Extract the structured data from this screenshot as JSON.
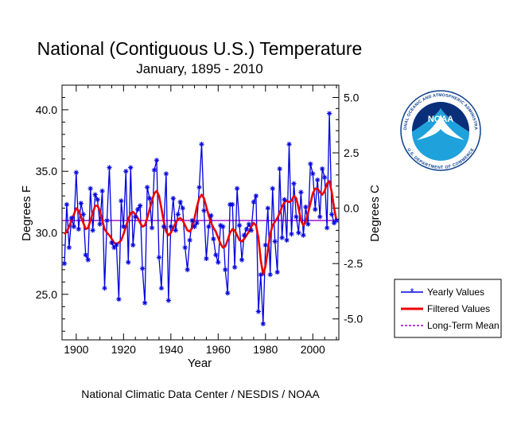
{
  "chart_data": {
    "type": "line",
    "title": "National (Contiguous U.S.) Temperature",
    "subtitle": "January, 1895 - 2010",
    "xlabel": "Year",
    "ylabel": "Degrees F",
    "y2label": "Degrees C",
    "xlim": [
      1894,
      2011
    ],
    "ylim": [
      21.3,
      42.0
    ],
    "x_ticks": [
      1900,
      1920,
      1940,
      1960,
      1980,
      2000
    ],
    "y_ticks": [
      25.0,
      30.0,
      35.0,
      40.0
    ],
    "y_tick_labels": [
      "25.0",
      "30.0",
      "35.0",
      "40.0"
    ],
    "y2_ticks": [
      -5.0,
      -2.5,
      0.0,
      2.5,
      5.0
    ],
    "y2_tick_labels": [
      "-5.0",
      "-2.5",
      "0.0",
      "2.5",
      "5.0"
    ],
    "grid": false,
    "legend_position": "right",
    "years": [
      1895,
      1896,
      1897,
      1898,
      1899,
      1900,
      1901,
      1902,
      1903,
      1904,
      1905,
      1906,
      1907,
      1908,
      1909,
      1910,
      1911,
      1912,
      1913,
      1914,
      1915,
      1916,
      1917,
      1918,
      1919,
      1920,
      1921,
      1922,
      1923,
      1924,
      1925,
      1926,
      1927,
      1928,
      1929,
      1930,
      1931,
      1932,
      1933,
      1934,
      1935,
      1936,
      1937,
      1938,
      1939,
      1940,
      1941,
      1942,
      1943,
      1944,
      1945,
      1946,
      1947,
      1948,
      1949,
      1950,
      1951,
      1952,
      1953,
      1954,
      1955,
      1956,
      1957,
      1958,
      1959,
      1960,
      1961,
      1962,
      1963,
      1964,
      1965,
      1966,
      1967,
      1968,
      1969,
      1970,
      1971,
      1972,
      1973,
      1974,
      1975,
      1976,
      1977,
      1978,
      1979,
      1980,
      1981,
      1982,
      1983,
      1984,
      1985,
      1986,
      1987,
      1988,
      1989,
      1990,
      1991,
      1992,
      1993,
      1994,
      1995,
      1996,
      1997,
      1998,
      1999,
      2000,
      2001,
      2002,
      2003,
      2004,
      2005,
      2006,
      2007,
      2008,
      2009,
      2010
    ],
    "series": [
      {
        "name": "Yearly Values",
        "color": "#0000dd",
        "values": [
          27.5,
          32.3,
          28.8,
          31.2,
          30.5,
          34.9,
          30.3,
          32.4,
          31.5,
          28.2,
          27.8,
          33.6,
          30.2,
          33.1,
          32.7,
          30.7,
          33.4,
          25.5,
          31.0,
          35.3,
          29.2,
          28.8,
          29.0,
          24.6,
          32.6,
          30.5,
          35.0,
          27.6,
          35.3,
          29.0,
          31.3,
          31.9,
          32.2,
          27.1,
          24.3,
          33.7,
          32.8,
          30.4,
          35.1,
          35.9,
          28.0,
          25.5,
          30.5,
          34.8,
          24.5,
          30.5,
          32.8,
          30.2,
          31.5,
          32.5,
          32.0,
          28.8,
          27.0,
          29.4,
          31.0,
          30.5,
          30.8,
          33.7,
          37.2,
          31.8,
          27.9,
          30.5,
          31.4,
          29.5,
          28.2,
          27.6,
          30.6,
          30.5,
          27.0,
          25.1,
          32.3,
          32.3,
          27.2,
          33.6,
          30.6,
          27.8,
          29.8,
          30.3,
          30.7,
          30.2,
          32.5,
          33.0,
          23.6,
          26.6,
          22.6,
          29.0,
          32.0,
          26.6,
          33.6,
          29.3,
          26.8,
          35.2,
          29.6,
          32.7,
          29.4,
          37.2,
          29.9,
          34.0,
          31.3,
          30.0,
          33.3,
          29.8,
          32.1,
          30.7,
          35.6,
          34.8,
          31.9,
          34.3,
          31.3,
          35.2,
          34.5,
          30.4,
          39.7,
          31.5,
          30.8,
          31.0
        ]
      },
      {
        "name": "Filtered Values",
        "color": "#ee0000",
        "values": [
          29.9,
          30.1,
          30.5,
          31.0,
          31.5,
          32.0,
          31.8,
          31.3,
          30.8,
          30.3,
          30.4,
          31.0,
          31.6,
          32.2,
          32.2,
          31.8,
          31.0,
          30.3,
          30.0,
          29.8,
          29.5,
          29.2,
          29.1,
          29.2,
          29.4,
          29.9,
          30.5,
          31.1,
          31.6,
          31.7,
          31.5,
          31.2,
          30.8,
          30.5,
          30.6,
          31.2,
          31.9,
          32.6,
          33.2,
          33.4,
          33.0,
          32.0,
          30.9,
          30.1,
          29.8,
          30.0,
          30.4,
          30.8,
          31.1,
          31.2,
          31.0,
          30.6,
          30.2,
          30.1,
          30.4,
          31.2,
          32.1,
          32.8,
          33.1,
          32.8,
          32.1,
          31.4,
          30.8,
          30.4,
          30.1,
          29.6,
          29.1,
          28.8,
          28.9,
          29.4,
          30.0,
          30.3,
          30.2,
          29.8,
          29.4,
          29.3,
          29.5,
          29.8,
          30.1,
          30.5,
          30.8,
          30.6,
          29.6,
          27.8,
          26.6,
          27.3,
          28.6,
          29.9,
          30.6,
          30.9,
          31.2,
          31.6,
          32.1,
          32.5,
          32.6,
          32.5,
          32.6,
          33.0,
          32.8,
          32.0,
          31.0,
          30.6,
          30.9,
          31.6,
          32.4,
          33.2,
          33.6,
          33.6,
          33.3,
          33.1,
          33.4,
          34.0,
          34.2,
          33.3,
          32.0,
          31.0
        ]
      },
      {
        "name": "Long-Term Mean",
        "color": "#9900cc",
        "value": 31.0
      }
    ]
  },
  "footer": {
    "credit": "National Climatic Data Center / NESDIS / NOAA"
  },
  "logo": {
    "name": "NOAA",
    "ring_text_top": "NATIONAL OCEANIC AND ATMOSPHERIC ADMINISTRATION",
    "ring_text_bottom": "U.S. DEPARTMENT OF COMMERCE"
  }
}
